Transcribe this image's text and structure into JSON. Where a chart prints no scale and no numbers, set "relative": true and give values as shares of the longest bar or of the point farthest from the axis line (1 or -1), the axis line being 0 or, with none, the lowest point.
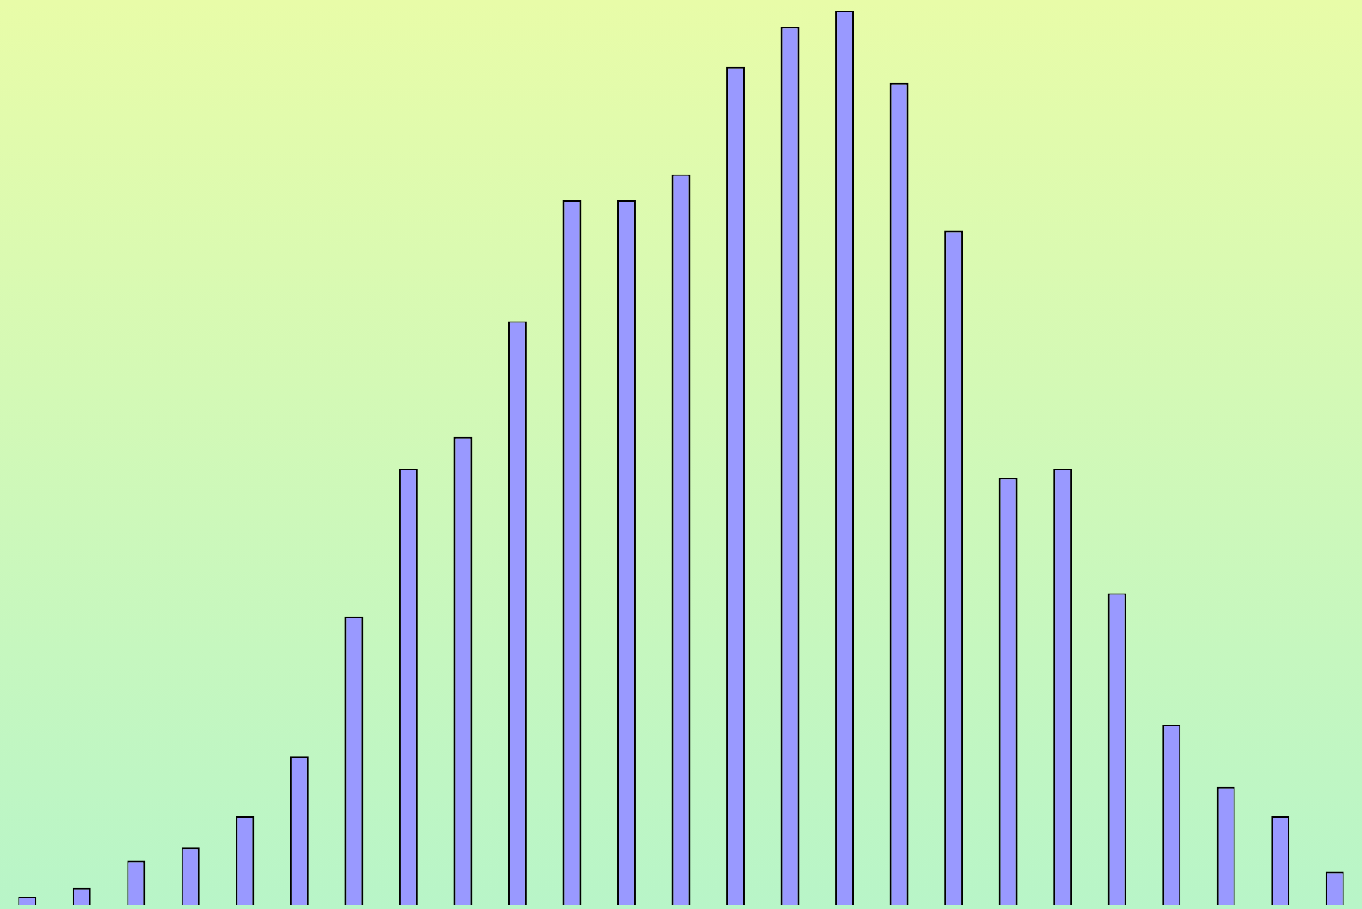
{
  "chart_data": {
    "type": "bar",
    "relative": true,
    "color": "#9999ff",
    "legend": false,
    "tick_labels": false,
    "categories": [
      null,
      null,
      null,
      null,
      null,
      null,
      null,
      null,
      null,
      null,
      null,
      null,
      null,
      null,
      null,
      null,
      null,
      null,
      null,
      null,
      null,
      null,
      null,
      null,
      null
    ],
    "values": [
      0.01,
      0.02,
      0.05,
      0.065,
      0.1,
      0.167,
      0.323,
      0.488,
      0.524,
      0.653,
      0.788,
      0.788,
      0.817,
      0.937,
      0.982,
      1,
      0.919,
      0.754,
      0.478,
      0.488,
      0.349,
      0.202,
      0.133,
      0.1,
      0.038
    ]
  }
}
